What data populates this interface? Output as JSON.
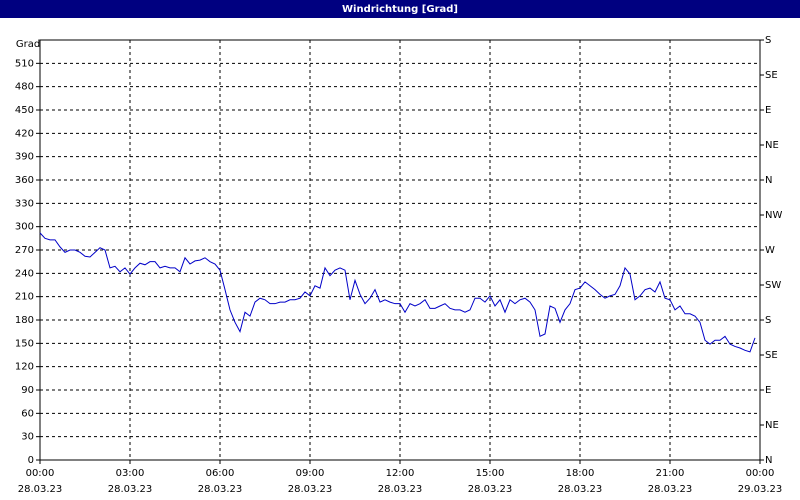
{
  "chart_data": {
    "type": "line",
    "title": "Windrichtung [Grad]",
    "ylabel": "Grad",
    "xlim": [
      0,
      1440
    ],
    "xticks": [
      {
        "value": 0,
        "label": "00:00",
        "date": "28.03.23"
      },
      {
        "value": 180,
        "label": "03:00",
        "date": "28.03.23"
      },
      {
        "value": 360,
        "label": "06:00",
        "date": "28.03.23"
      },
      {
        "value": 540,
        "label": "09:00",
        "date": "28.03.23"
      },
      {
        "value": 720,
        "label": "12:00",
        "date": "28.03.23"
      },
      {
        "value": 900,
        "label": "15:00",
        "date": "28.03.23"
      },
      {
        "value": 1080,
        "label": "18:00",
        "date": "28.03.23"
      },
      {
        "value": 1260,
        "label": "21:00",
        "date": "28.03.23"
      },
      {
        "value": 1440,
        "label": "00:00",
        "date": "29.03.23"
      }
    ],
    "ylim": [
      0,
      540
    ],
    "yticks": [
      0,
      30,
      60,
      90,
      120,
      150,
      180,
      210,
      240,
      270,
      300,
      330,
      360,
      390,
      420,
      450,
      480,
      510
    ],
    "y2lim": [
      0,
      540
    ],
    "y2ticks": [
      {
        "value": 0,
        "label": "N"
      },
      {
        "value": 45,
        "label": "NE"
      },
      {
        "value": 90,
        "label": "E"
      },
      {
        "value": 135,
        "label": "SE"
      },
      {
        "value": 180,
        "label": "S"
      },
      {
        "value": 225,
        "label": "SW"
      },
      {
        "value": 270,
        "label": "W"
      },
      {
        "value": 315,
        "label": "NW"
      },
      {
        "value": 360,
        "label": "N"
      },
      {
        "value": 405,
        "label": "NE"
      },
      {
        "value": 450,
        "label": "E"
      },
      {
        "value": 495,
        "label": "SE"
      },
      {
        "value": 540,
        "label": "S"
      }
    ],
    "grid": true,
    "x": [
      0,
      10,
      20,
      30,
      40,
      50,
      60,
      70,
      80,
      90,
      100,
      110,
      120,
      130,
      140,
      150,
      160,
      170,
      180,
      190,
      200,
      210,
      220,
      230,
      240,
      250,
      260,
      270,
      280,
      290,
      300,
      310,
      320,
      330,
      340,
      350,
      360,
      370,
      380,
      390,
      400,
      410,
      420,
      430,
      440,
      450,
      460,
      470,
      480,
      490,
      500,
      510,
      520,
      530,
      540,
      550,
      560,
      570,
      580,
      590,
      600,
      610,
      620,
      630,
      640,
      650,
      660,
      670,
      680,
      690,
      700,
      710,
      720,
      730,
      740,
      750,
      760,
      770,
      780,
      790,
      800,
      810,
      820,
      830,
      840,
      850,
      860,
      870,
      880,
      890,
      900,
      910,
      920,
      930,
      940,
      950,
      960,
      970,
      980,
      990,
      1000,
      1010,
      1020,
      1030,
      1040,
      1050,
      1060,
      1070,
      1080,
      1090,
      1100,
      1110,
      1120,
      1130,
      1140,
      1150,
      1160,
      1170,
      1180,
      1190,
      1200,
      1210,
      1220,
      1230,
      1240,
      1250,
      1260,
      1270,
      1280,
      1290,
      1300,
      1310,
      1320,
      1330,
      1340,
      1350,
      1360,
      1370,
      1380,
      1390,
      1400,
      1410,
      1420,
      1430
    ],
    "series": [
      {
        "color": "#0000c8",
        "values": [
          292,
          285,
          283,
          283,
          274,
          267,
          270,
          270,
          267,
          262,
          261,
          267,
          273,
          270,
          247,
          249,
          242,
          247,
          239,
          247,
          253,
          251,
          255,
          255,
          247,
          249,
          247,
          247,
          242,
          260,
          252,
          256,
          257,
          260,
          255,
          252,
          244,
          219,
          193,
          177,
          165,
          190,
          185,
          203,
          208,
          206,
          201,
          201,
          203,
          203,
          206,
          206,
          208,
          216,
          211,
          224,
          221,
          247,
          237,
          244,
          247,
          244,
          206,
          231,
          213,
          201,
          208,
          219,
          203,
          206,
          203,
          201,
          201,
          190,
          201,
          198,
          201,
          206,
          195,
          195,
          198,
          201,
          195,
          193,
          193,
          190,
          193,
          208,
          208,
          203,
          211,
          198,
          206,
          190,
          206,
          201,
          206,
          208,
          203,
          193,
          159,
          162,
          198,
          195,
          177,
          193,
          201,
          219,
          221,
          229,
          224,
          219,
          213,
          208,
          211,
          213,
          224,
          247,
          239,
          206,
          211,
          219,
          221,
          216,
          229,
          208,
          206,
          193,
          198,
          188,
          188,
          185,
          177,
          154,
          149,
          154,
          154,
          159,
          149,
          146,
          144,
          141,
          139,
          157
        ]
      }
    ]
  }
}
